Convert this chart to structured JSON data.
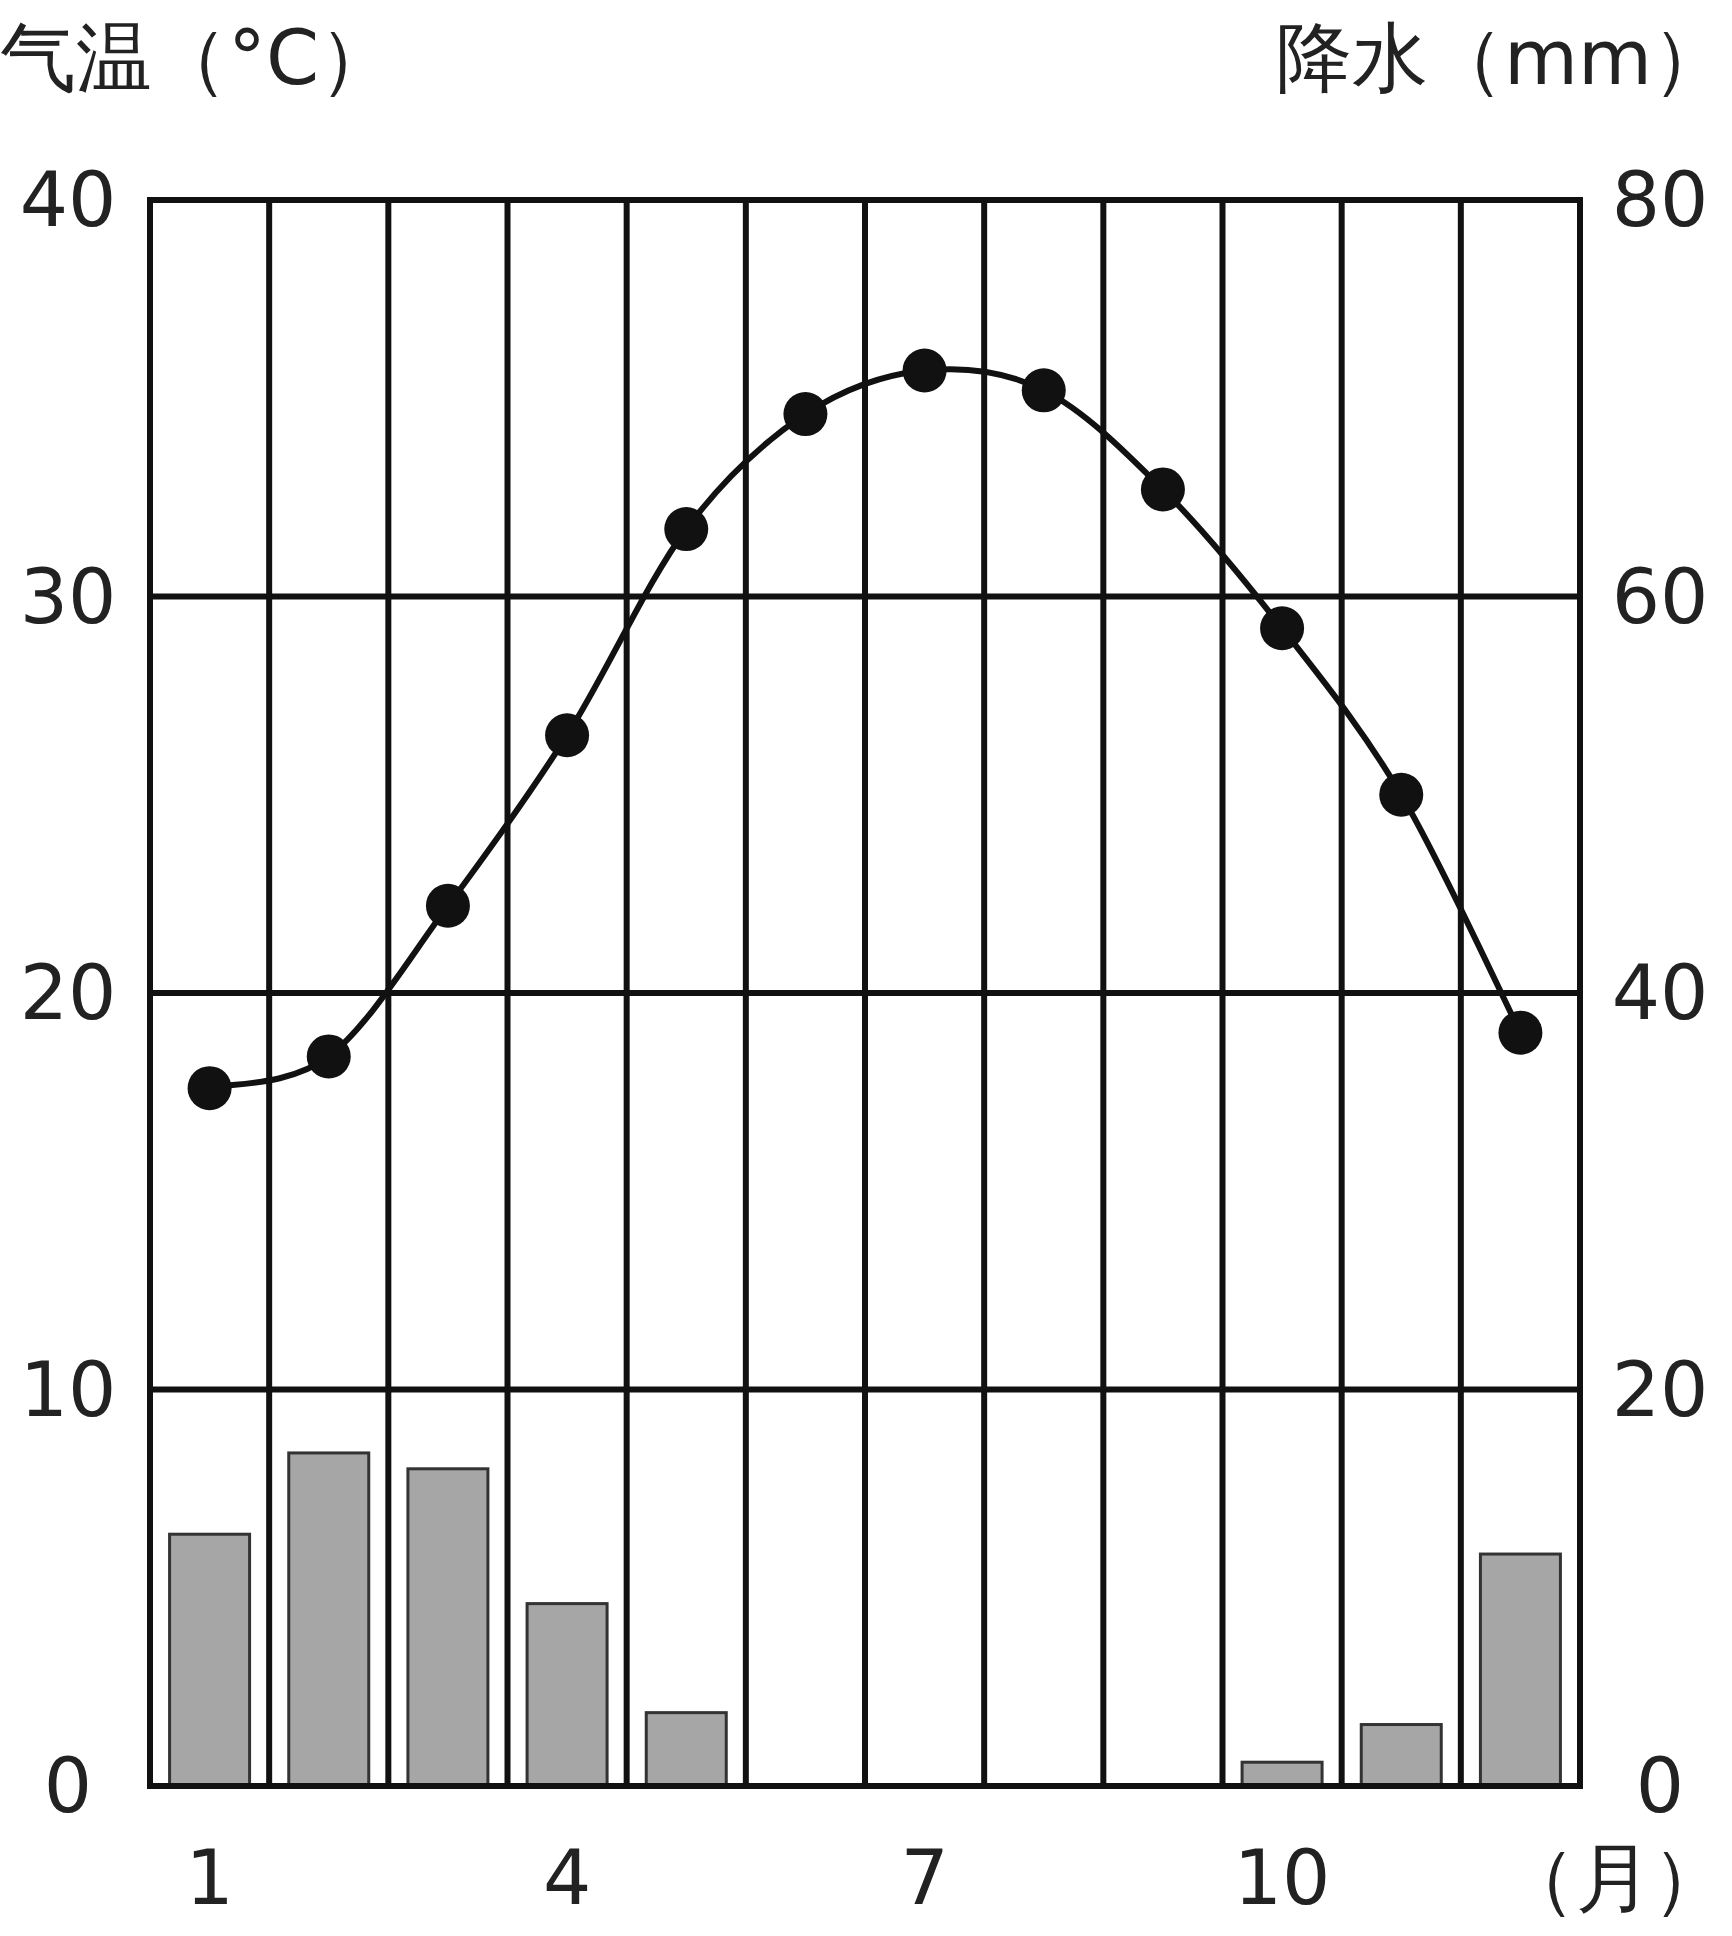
{
  "chart_data": {
    "type": "bar",
    "categories": [
      "1",
      null,
      null,
      "4",
      null,
      null,
      "7",
      null,
      null,
      "10",
      null,
      null
    ],
    "xlabel": "（月）",
    "ylabel": "气温（°C）",
    "y2label": "降水（mm）",
    "ylim": [
      0,
      40
    ],
    "yticks": [
      0,
      10,
      20,
      30,
      40
    ],
    "y2lim": [
      0,
      80
    ],
    "y2ticks": [
      0,
      20,
      40,
      60,
      80
    ],
    "grid": true,
    "marker": "circle",
    "series": [
      {
        "axis": "y2",
        "color": "#a6a6a6",
        "values": [
          12.7,
          16.8,
          16.0,
          9.2,
          3.7,
          0,
          0,
          0,
          0,
          1.2,
          3.1,
          11.7
        ]
      },
      {
        "type": "line",
        "axis": "y",
        "color": "#111111",
        "values": [
          17.6,
          18.4,
          22.2,
          26.5,
          31.7,
          34.6,
          35.7,
          35.2,
          32.7,
          29.2,
          25.0,
          19.0
        ]
      }
    ]
  }
}
